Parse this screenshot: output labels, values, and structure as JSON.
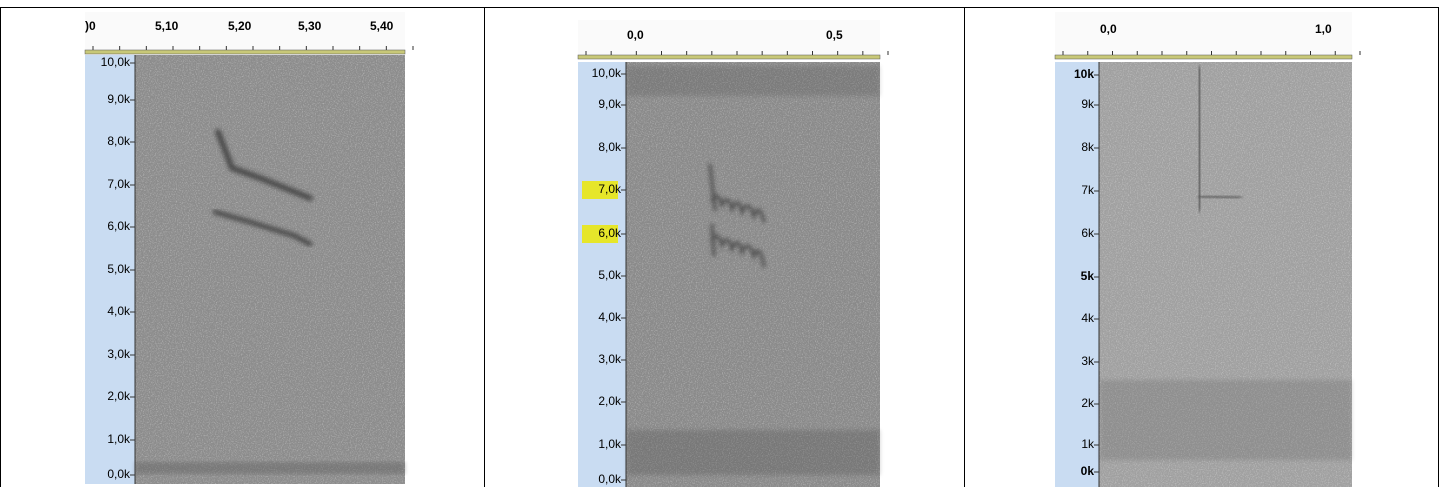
{
  "panels": [
    {
      "time_labels": [
        ")0",
        "5,10",
        "5,20",
        "5,30",
        "5,40"
      ],
      "freq_labels": [
        "10,0k",
        "9,0k",
        "8,0k",
        "7,0k",
        "6,0k",
        "5,0k",
        "4,0k",
        "3,0k",
        "2,0k",
        "1,0k",
        "0,0k"
      ]
    },
    {
      "time_labels": [
        "0,0",
        "0,5"
      ],
      "freq_labels": [
        "10,0k",
        "9,0k",
        "8,0k",
        "7,0k",
        "6,0k",
        "5,0k",
        "4,0k",
        "3,0k",
        "2,0k",
        "1,0k",
        "0,0k"
      ]
    },
    {
      "time_labels": [
        "0,0",
        "1,0"
      ],
      "freq_labels": [
        "10k",
        "9k",
        "8k",
        "7k",
        "6k",
        "5k",
        "4k",
        "3k",
        "2k",
        "1k",
        "0k"
      ]
    }
  ]
}
